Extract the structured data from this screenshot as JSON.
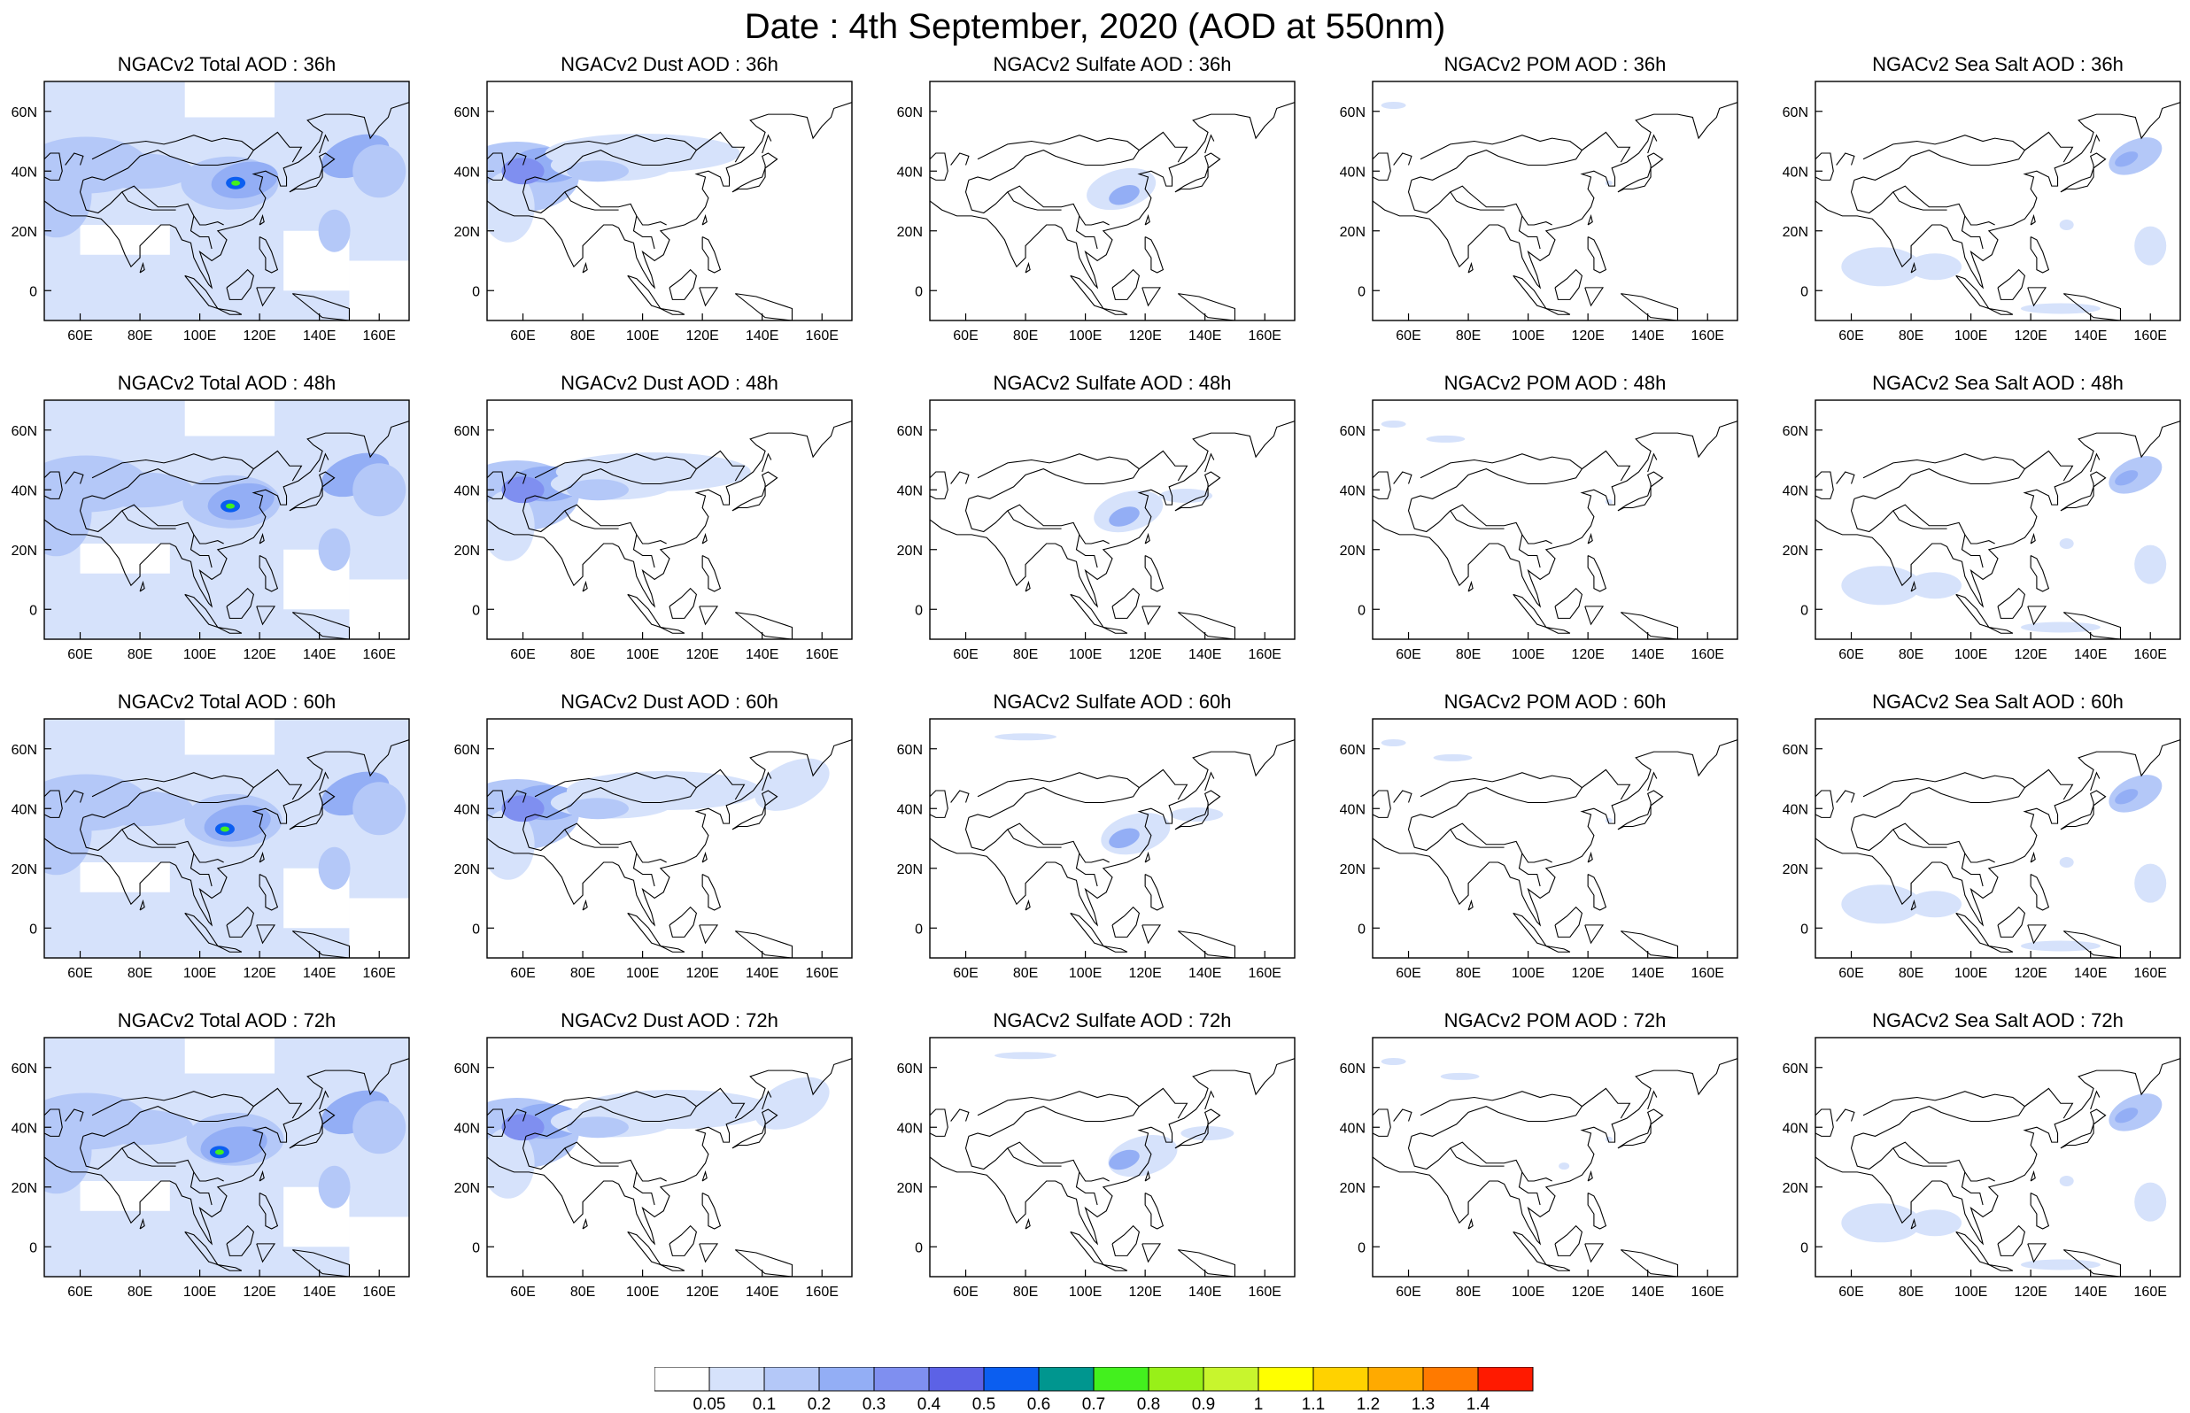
{
  "title": "Date : 4th September, 2020 (AOD at 550nm)",
  "map": {
    "x_ticks": [
      "60E",
      "80E",
      "100E",
      "120E",
      "140E",
      "160E"
    ],
    "y_ticks": [
      "60N",
      "40N",
      "20N",
      "0"
    ],
    "lon_range": [
      48,
      170
    ],
    "lat_range": [
      -10,
      70
    ]
  },
  "panels": [
    {
      "title": "NGACv2 Total AOD : 36h",
      "type": "total",
      "hour": 36
    },
    {
      "title": "NGACv2 Dust AOD : 36h",
      "type": "dust",
      "hour": 36
    },
    {
      "title": "NGACv2 Sulfate AOD : 36h",
      "type": "sulfate",
      "hour": 36
    },
    {
      "title": "NGACv2 POM AOD : 36h",
      "type": "pom",
      "hour": 36
    },
    {
      "title": "NGACv2 Sea Salt AOD : 36h",
      "type": "seasalt",
      "hour": 36
    },
    {
      "title": "NGACv2 Total AOD : 48h",
      "type": "total",
      "hour": 48
    },
    {
      "title": "NGACv2 Dust AOD : 48h",
      "type": "dust",
      "hour": 48
    },
    {
      "title": "NGACv2 Sulfate AOD : 48h",
      "type": "sulfate",
      "hour": 48
    },
    {
      "title": "NGACv2 POM AOD : 48h",
      "type": "pom",
      "hour": 48
    },
    {
      "title": "NGACv2 Sea Salt AOD : 48h",
      "type": "seasalt",
      "hour": 48
    },
    {
      "title": "NGACv2 Total AOD : 60h",
      "type": "total",
      "hour": 60
    },
    {
      "title": "NGACv2 Dust AOD : 60h",
      "type": "dust",
      "hour": 60
    },
    {
      "title": "NGACv2 Sulfate AOD : 60h",
      "type": "sulfate",
      "hour": 60
    },
    {
      "title": "NGACv2 POM AOD : 60h",
      "type": "pom",
      "hour": 60
    },
    {
      "title": "NGACv2 Sea Salt AOD : 60h",
      "type": "seasalt",
      "hour": 60
    },
    {
      "title": "NGACv2 Total AOD : 72h",
      "type": "total",
      "hour": 72
    },
    {
      "title": "NGACv2 Dust AOD : 72h",
      "type": "dust",
      "hour": 72
    },
    {
      "title": "NGACv2 Sulfate AOD : 72h",
      "type": "sulfate",
      "hour": 72
    },
    {
      "title": "NGACv2 POM AOD : 72h",
      "type": "pom",
      "hour": 72
    },
    {
      "title": "NGACv2 Sea Salt  AOD : 72h",
      "type": "seasalt",
      "hour": 72
    }
  ],
  "colorbar": {
    "labels": [
      "0.05",
      "0.1",
      "0.2",
      "0.3",
      "0.4",
      "0.5",
      "0.6",
      "0.7",
      "0.8",
      "0.9",
      "1",
      "1.1",
      "1.2",
      "1.3",
      "1.4"
    ],
    "colors": [
      "#ffffff",
      "#d6e2fb",
      "#b4c8f8",
      "#93aef5",
      "#7f8ff0",
      "#5c62e6",
      "#0b5ef0",
      "#00968f",
      "#43f01e",
      "#98f018",
      "#c8f52d",
      "#ffff00",
      "#ffd200",
      "#ffaa00",
      "#ff7a00",
      "#ff1a00"
    ]
  }
}
